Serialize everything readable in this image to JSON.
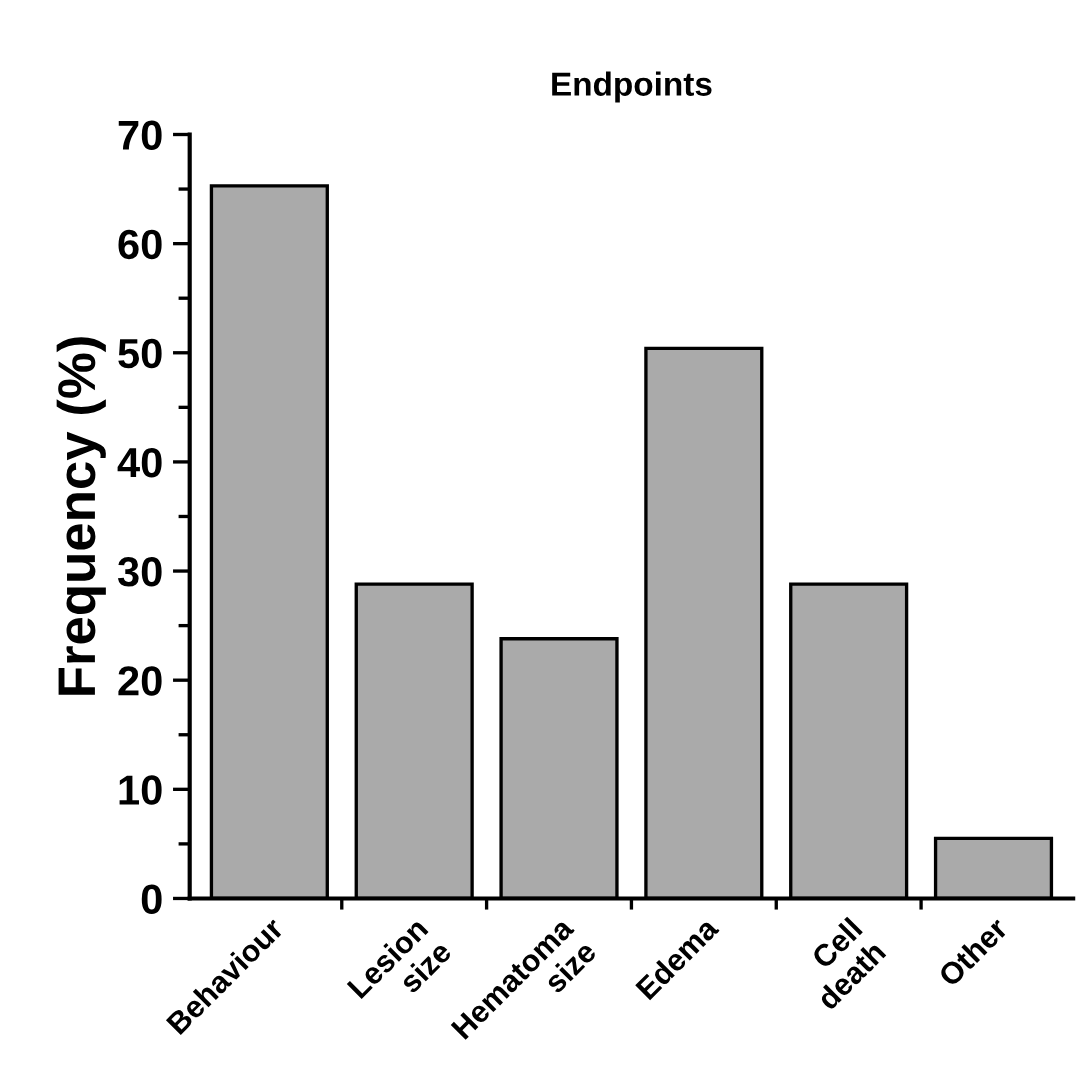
{
  "chart_data": {
    "type": "bar",
    "title": "Endpoints",
    "ylabel": "Frequency (%)",
    "categories": [
      "Behaviour",
      "Lesion\nsize",
      "Hematoma\nsize",
      "Edema",
      "Cell\ndeath",
      "Other"
    ],
    "values": [
      65.3,
      28.8,
      23.8,
      50.4,
      28.8,
      5.5
    ],
    "color": "#aaaaaa",
    "ylim": [
      0,
      70
    ],
    "yticks": [
      0,
      10,
      20,
      30,
      40,
      50,
      60,
      70
    ],
    "grid": false,
    "legend": false
  }
}
